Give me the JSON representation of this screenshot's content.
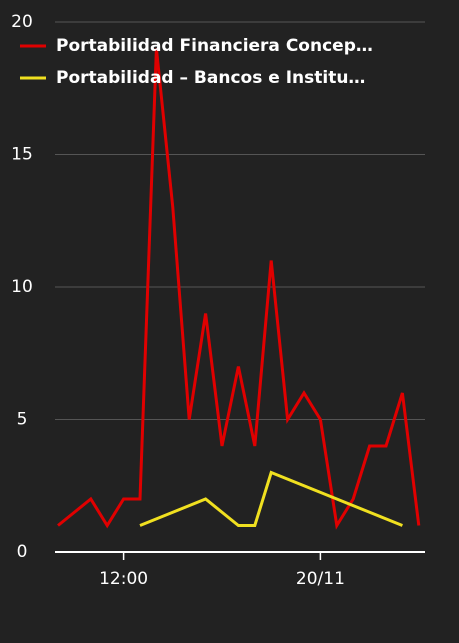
{
  "chart_data": {
    "type": "line",
    "categories": [
      null,
      null,
      null,
      null,
      "12:00",
      null,
      null,
      null,
      null,
      null,
      null,
      null,
      null,
      null,
      null,
      null,
      "20/11",
      null,
      null,
      null,
      null,
      null,
      null
    ],
    "series": [
      {
        "name": "Portabilidad Financiera Concep…",
        "color": "#e00000",
        "values": [
          1,
          1.5,
          2,
          1,
          2,
          2,
          19,
          13,
          5,
          9,
          4,
          7,
          4,
          11,
          5,
          6,
          5,
          1,
          2,
          4,
          4,
          6,
          1
        ]
      },
      {
        "name": "Portabilidad – Bancos e Institu…",
        "color": "#f0e020",
        "values": [
          null,
          null,
          null,
          null,
          null,
          1,
          1.25,
          1.5,
          1.75,
          2,
          1.5,
          1,
          1,
          3,
          2.75,
          2.5,
          2.25,
          2,
          1.75,
          1.5,
          1.25,
          1,
          null
        ]
      }
    ],
    "ylim": [
      0,
      20
    ],
    "yticks": [
      0,
      5,
      10,
      15,
      20
    ],
    "grid": true,
    "legend": "top-left"
  }
}
